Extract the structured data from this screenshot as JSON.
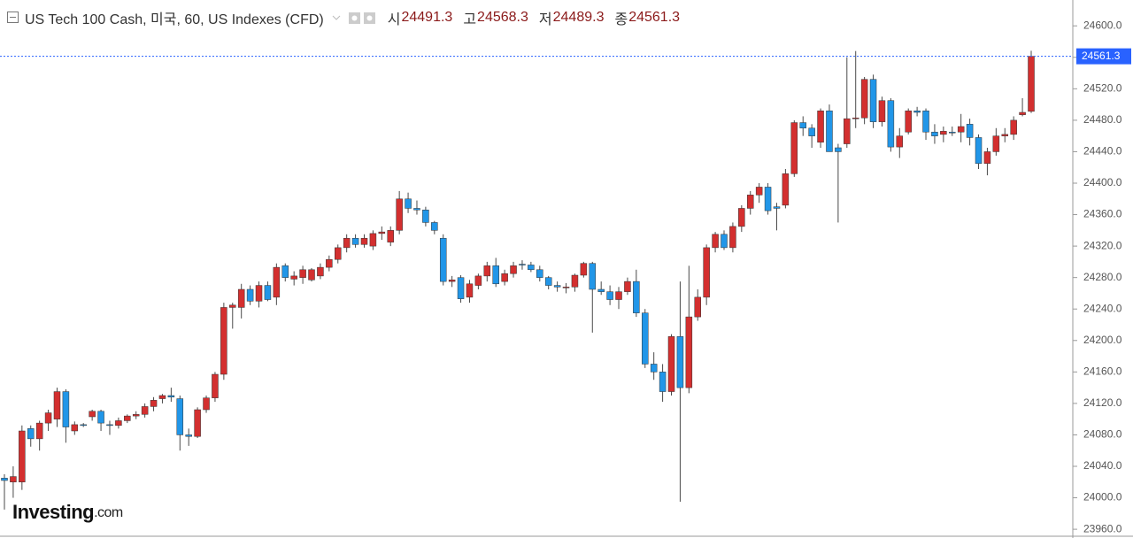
{
  "chart_data": {
    "type": "candlestick",
    "title": "US Tech 100 Cash, 미국, 60, US Indexes (CFD)",
    "ohlc_labels": [
      "시",
      "고",
      "저",
      "종"
    ],
    "logo": [
      "Investing",
      ".com"
    ],
    "up_color": "#d32f2f",
    "down_color": "#2196e8",
    "wick_color": "#4a4a4a",
    "last_price_color": "#2962ff",
    "ylim": [
      23950,
      24625
    ],
    "yticks": [
      {
        "value": 23960,
        "label": "23960.0"
      },
      {
        "value": 24000,
        "label": "24000.0"
      },
      {
        "value": 24040,
        "label": "24040.0"
      },
      {
        "value": 24080,
        "label": "24080.0"
      },
      {
        "value": 24120,
        "label": "24120.0"
      },
      {
        "value": 24160,
        "label": "24160.0"
      },
      {
        "value": 24200,
        "label": "24200.0"
      },
      {
        "value": 24240,
        "label": "24240.0"
      },
      {
        "value": 24280,
        "label": "24280.0"
      },
      {
        "value": 24320,
        "label": "24320.0"
      },
      {
        "value": 24360,
        "label": "24360.0"
      },
      {
        "value": 24400,
        "label": "24400.0"
      },
      {
        "value": 24440,
        "label": "24440.0"
      },
      {
        "value": 24480,
        "label": "24480.0"
      },
      {
        "value": 24520,
        "label": "24520.0"
      },
      {
        "value": 24560,
        "label": "24560.0"
      },
      {
        "value": 24600,
        "label": "24600.0"
      }
    ],
    "open": [
      24025,
      24020,
      24020,
      24088,
      24075,
      24095,
      24100,
      24135,
      24085,
      24093,
      24103,
      24110,
      24093,
      24092,
      24098,
      24104,
      24106,
      24116,
      24126,
      24130,
      24126,
      24080,
      24078,
      24112,
      24127,
      24157,
      24242,
      24242,
      24265,
      24250,
      24270,
      24255,
      24295,
      24278,
      24280,
      24277,
      24282,
      24293,
      24303,
      24318,
      24330,
      24322,
      24320,
      24336,
      24325,
      24340,
      24380,
      24368,
      24366,
      24350,
      24330,
      24275,
      24280,
      24255,
      24270,
      24282,
      24295,
      24275,
      24285,
      24297,
      24296,
      24290,
      24280,
      24270,
      24268,
      24268,
      24283,
      24298,
      24265,
      24262,
      24252,
      24262,
      24275,
      24235,
      24170,
      24160,
      24135,
      24205,
      24140,
      24230,
      24255,
      24318,
      24335,
      24318,
      24345,
      24368,
      24385,
      24395,
      24370,
      24372,
      24412,
      24477,
      24470,
      24452,
      24492,
      24445,
      24450,
      24482,
      24483,
      24532,
      24478,
      24505,
      24446,
      24465,
      24492,
      24492,
      24465,
      24462,
      24465,
      24465,
      24475,
      24458,
      24425,
      24440,
      24460,
      24462,
      24487,
      24491.3
    ],
    "high": [
      24030,
      24040,
      24092,
      24092,
      24098,
      24112,
      24140,
      24138,
      24097,
      24095,
      24112,
      24112,
      24098,
      24102,
      24106,
      24110,
      24120,
      24128,
      24132,
      24140,
      24130,
      24088,
      24115,
      24130,
      24160,
      24248,
      24248,
      24272,
      24270,
      24275,
      24275,
      24298,
      24298,
      24288,
      24295,
      24292,
      24298,
      24308,
      24322,
      24335,
      24335,
      24335,
      24340,
      24345,
      24345,
      24390,
      24388,
      24378,
      24370,
      24352,
      24335,
      24282,
      24283,
      24277,
      24285,
      24300,
      24305,
      24290,
      24300,
      24302,
      24300,
      24295,
      24282,
      24275,
      24273,
      24285,
      24300,
      24300,
      24275,
      24270,
      24268,
      24280,
      24290,
      24240,
      24185,
      24170,
      24208,
      24275,
      24295,
      24265,
      24322,
      24338,
      24340,
      24350,
      24372,
      24390,
      24400,
      24400,
      24375,
      24418,
      24480,
      24485,
      24475,
      24495,
      24500,
      24450,
      24560,
      24568,
      24535,
      24538,
      24510,
      24508,
      24470,
      24495,
      24497,
      24495,
      24475,
      24472,
      24472,
      24488,
      24482,
      24462,
      24445,
      24470,
      24470,
      24485,
      24508,
      24568.3
    ],
    "low": [
      23985,
      24000,
      24010,
      24065,
      24060,
      24085,
      24090,
      24070,
      24080,
      24090,
      24098,
      24085,
      24080,
      24088,
      24095,
      24100,
      24102,
      24110,
      24120,
      24122,
      24060,
      24066,
      24076,
      24108,
      24122,
      24150,
      24215,
      24228,
      24245,
      24242,
      24250,
      24245,
      24275,
      24270,
      24272,
      24275,
      24278,
      24288,
      24298,
      24312,
      24318,
      24318,
      24315,
      24328,
      24320,
      24335,
      24362,
      24360,
      24345,
      24335,
      24270,
      24268,
      24248,
      24248,
      24265,
      24275,
      24268,
      24270,
      24280,
      24290,
      24287,
      24275,
      24265,
      24262,
      24260,
      24262,
      24280,
      24210,
      24258,
      24245,
      24240,
      24258,
      24230,
      24165,
      24150,
      24122,
      24130,
      23995,
      24133,
      24225,
      24245,
      24312,
      24315,
      24312,
      24338,
      24360,
      24375,
      24360,
      24340,
      24368,
      24408,
      24460,
      24445,
      24445,
      24440,
      24350,
      24445,
      24470,
      24475,
      24470,
      24472,
      24440,
      24432,
      24462,
      24485,
      24455,
      24450,
      24452,
      24460,
      24452,
      24448,
      24418,
      24410,
      24435,
      24452,
      24455,
      24485,
      24489.3
    ],
    "close": [
      24022,
      24027,
      24085,
      24075,
      24095,
      24108,
      24135,
      24090,
      24093,
      24092,
      24110,
      24095,
      24092,
      24098,
      24104,
      24106,
      24116,
      24124,
      24130,
      24128,
      24080,
      24078,
      24112,
      24127,
      24157,
      24242,
      24245,
      24265,
      24250,
      24270,
      24252,
      24293,
      24280,
      24282,
      24290,
      24290,
      24293,
      24303,
      24318,
      24330,
      24322,
      24330,
      24336,
      24338,
      24340,
      24380,
      24368,
      24366,
      24350,
      24340,
      24275,
      24277,
      24253,
      24272,
      24282,
      24295,
      24272,
      24285,
      24295,
      24296,
      24290,
      24280,
      24270,
      24268,
      24268,
      24283,
      24298,
      24265,
      24262,
      24252,
      24262,
      24275,
      24235,
      24170,
      24160,
      24135,
      24205,
      24140,
      24230,
      24255,
      24318,
      24335,
      24318,
      24345,
      24368,
      24385,
      24395,
      24365,
      24368,
      24412,
      24477,
      24470,
      24460,
      24492,
      24440,
      24440,
      24482,
      24483,
      24532,
      24478,
      24505,
      24446,
      24460,
      24492,
      24490,
      24465,
      24460,
      24466,
      24464,
      24472,
      24458,
      24425,
      24440,
      24460,
      24462,
      24480,
      24490,
      24561.3
    ]
  }
}
